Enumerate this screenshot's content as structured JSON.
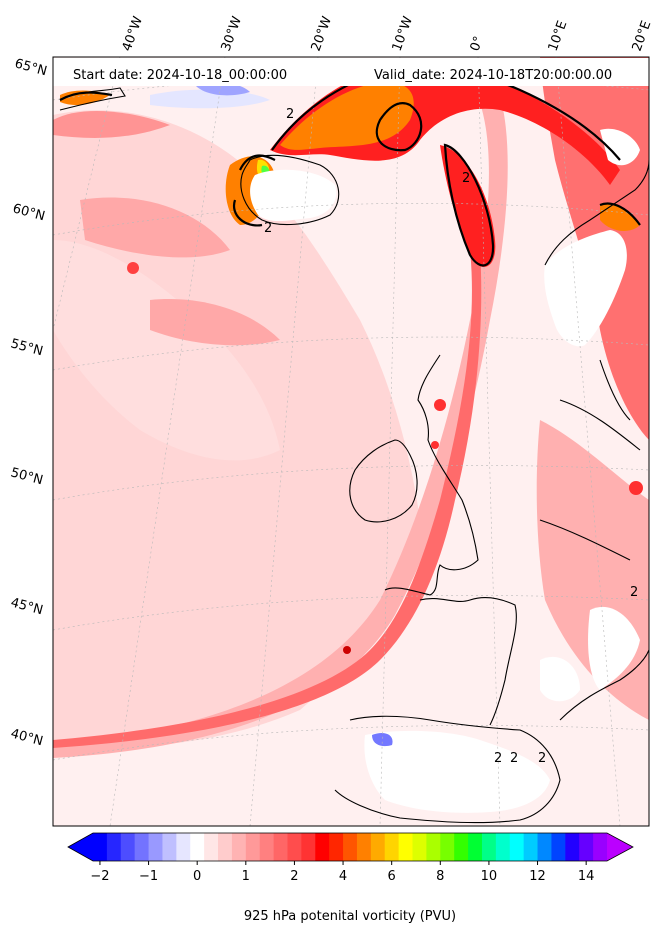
{
  "header": {
    "start_date": "Start date: 2024-10-18_00:00:00",
    "valid_date": "Valid_date: 2024-10-18T20:00:00.00"
  },
  "map": {
    "projection": "polar-stereographic",
    "top_longitude_labels": [
      "40°W",
      "30°W",
      "20°W",
      "10°W",
      "0°",
      "10°E",
      "20°E"
    ],
    "left_latitude_labels": [
      "65°N",
      "60°N",
      "55°N",
      "50°N",
      "45°N",
      "40°N"
    ],
    "contour_line_label": "2",
    "field_colors": {
      "background": "#fff0f0",
      "light_red": "#ffc8c8",
      "mid_red": "#ff8080",
      "red": "#ff2020",
      "orange": "#ff8000",
      "yellow": "#ffe000",
      "green": "#40ff40",
      "land_mask": "#ffffff",
      "negative_blue": "#c8c8ff"
    }
  },
  "colorbar": {
    "label": "925 hPa potenital vorticity (PVU)",
    "ticks": [
      "−2",
      "−1",
      "0",
      "1",
      "2",
      "4",
      "6",
      "8",
      "10",
      "12",
      "14"
    ],
    "colors": [
      "#0000ff",
      "#2626ff",
      "#4d4dff",
      "#7373ff",
      "#9999ff",
      "#bfbfff",
      "#e6e6ff",
      "#ffffff",
      "#ffe6e6",
      "#ffcccc",
      "#ffb3b3",
      "#ff9999",
      "#ff8080",
      "#ff6666",
      "#ff4d4d",
      "#ff3333",
      "#ff0000",
      "#ff2600",
      "#ff5500",
      "#ff8000",
      "#ffaa00",
      "#ffd400",
      "#ffff00",
      "#ddff00",
      "#aaff00",
      "#77ff00",
      "#33ff00",
      "#00ff33",
      "#00ff88",
      "#00ffcc",
      "#00ffff",
      "#00ccff",
      "#0088ff",
      "#0044ff",
      "#2200ff",
      "#6600ff",
      "#9900ff"
    ],
    "under_color": "#0000ff",
    "over_color": "#bb00ff"
  }
}
